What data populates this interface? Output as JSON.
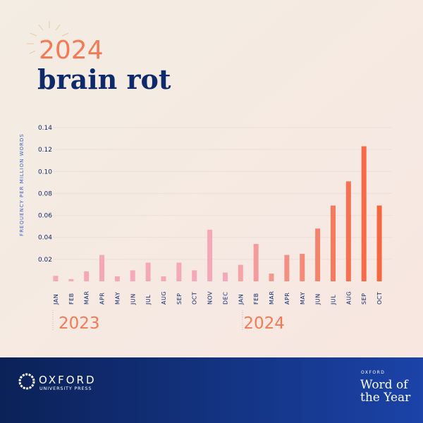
{
  "header": {
    "year": "2024",
    "word": "brain rot"
  },
  "chart_data": {
    "type": "bar",
    "y_label": "FREQUENCY PER MILLION WORDS",
    "ylim": [
      0,
      0.14
    ],
    "yticks": [
      0.02,
      0.04,
      0.06,
      0.08,
      {
        "value": 0.1,
        "label": "0.10"
      },
      0.12,
      0.14
    ],
    "grid": true,
    "groups": [
      {
        "label": "2023",
        "categories": [
          "JAN",
          "FEB",
          "MAR",
          "APR",
          "MAY",
          "JUN",
          "JUL",
          "AUG",
          "SEP",
          "OCT",
          "NOV",
          "DEC"
        ],
        "values": [
          0.005,
          0.002,
          0.009,
          0.024,
          0.0045,
          0.01,
          0.017,
          0.0045,
          0.017,
          0.01,
          0.047,
          0.008
        ],
        "colors": [
          "#f5a9b8",
          "#f5a9b8",
          "#f5a9b8",
          "#f5a9b8",
          "#f5a9b8",
          "#f5a9b8",
          "#f5a9b8",
          "#f5a9b8",
          "#f5a9b8",
          "#f5a9b8",
          "#f5a9b8",
          "#f5a9b8"
        ]
      },
      {
        "label": "2024",
        "categories": [
          "JAN",
          "FEB",
          "MAR",
          "APR",
          "MAY",
          "JUN",
          "JUL",
          "AUG",
          "SEP",
          "OCT"
        ],
        "values": [
          0.015,
          0.034,
          0.007,
          0.024,
          0.025,
          0.048,
          0.069,
          0.091,
          0.123,
          0.069
        ],
        "colors": [
          "#f5a3a8",
          "#f49c9c",
          "#f4978f",
          "#f49083",
          "#f48a77",
          "#f5826a",
          "#f57a5e",
          "#f57152",
          "#f66a47",
          "#f6673f"
        ]
      }
    ]
  },
  "footer": {
    "logo_name": "OXFORD",
    "logo_sub": "UNIVERSITY PRESS",
    "badge_top": "OXFORD",
    "badge_line1": "Word of",
    "badge_line2": "the Year"
  }
}
